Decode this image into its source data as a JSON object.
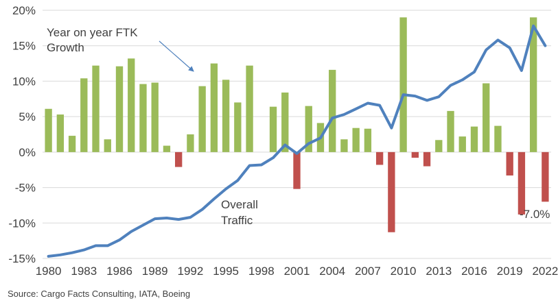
{
  "chart_data": {
    "type": "bar",
    "title": "",
    "xlabel": "",
    "ylabel": "",
    "ylim": [
      -15,
      20
    ],
    "yticks": [
      20,
      15,
      10,
      5,
      0,
      -5,
      -10,
      -15
    ],
    "ytick_labels": [
      "20%",
      "15%",
      "10%",
      "5%",
      "0%",
      "-5%",
      "-10%",
      "-15%"
    ],
    "xtick_labels": [
      "1980",
      "1983",
      "1986",
      "1989",
      "1992",
      "1995",
      "1998",
      "2001",
      "2004",
      "2007",
      "2010",
      "2013",
      "2016",
      "2019",
      "2022"
    ],
    "grid": true,
    "colors": {
      "positive_bar": "#9bbb59",
      "negative_bar": "#c0504d",
      "line": "#4f81bd"
    },
    "categories": [
      1980,
      1981,
      1982,
      1983,
      1984,
      1985,
      1986,
      1987,
      1988,
      1989,
      1990,
      1991,
      1992,
      1993,
      1994,
      1995,
      1996,
      1997,
      1998,
      1999,
      2000,
      2001,
      2002,
      2003,
      2004,
      2005,
      2006,
      2007,
      2008,
      2009,
      2010,
      2011,
      2012,
      2013,
      2014,
      2015,
      2016,
      2017,
      2018,
      2019,
      2020,
      2021,
      2022
    ],
    "series": [
      {
        "kind": "bar",
        "values": [
          6.1,
          5.3,
          2.3,
          10.4,
          12.2,
          1.8,
          12.1,
          13.2,
          9.6,
          9.8,
          0.9,
          -2.1,
          2.5,
          9.3,
          12.5,
          10.2,
          7.0,
          12.2,
          0.0,
          6.4,
          8.4,
          -5.2,
          6.5,
          4.1,
          11.6,
          1.8,
          3.4,
          3.3,
          -1.8,
          -11.3,
          19.0,
          -0.8,
          -2.0,
          1.7,
          5.8,
          2.2,
          3.6,
          9.7,
          3.7,
          -3.3,
          -8.8,
          19.0,
          -7.0
        ]
      },
      {
        "kind": "line",
        "values": [
          -14.7,
          -14.5,
          -14.2,
          -13.8,
          -13.2,
          -13.2,
          -12.4,
          -11.2,
          -10.3,
          -9.4,
          -9.3,
          -9.5,
          -9.2,
          -8.1,
          -6.6,
          -5.2,
          -4.0,
          -1.9,
          -1.8,
          -0.8,
          1.0,
          -0.2,
          1.2,
          2.0,
          4.8,
          5.3,
          6.1,
          6.9,
          6.6,
          3.4,
          8.1,
          7.9,
          7.3,
          7.8,
          9.4,
          10.2,
          11.3,
          14.4,
          15.8,
          14.7,
          11.5,
          17.8,
          15.0
        ]
      }
    ],
    "annotations": {
      "bar_label_line1": "Year on year FTK",
      "bar_label_line2": "Growth",
      "line_label_line1": "Overall",
      "line_label_line2": "Traffic",
      "last_value_label": "-7.0%"
    },
    "source": "Source: Cargo Facts Consulting, IATA, Boeing"
  }
}
